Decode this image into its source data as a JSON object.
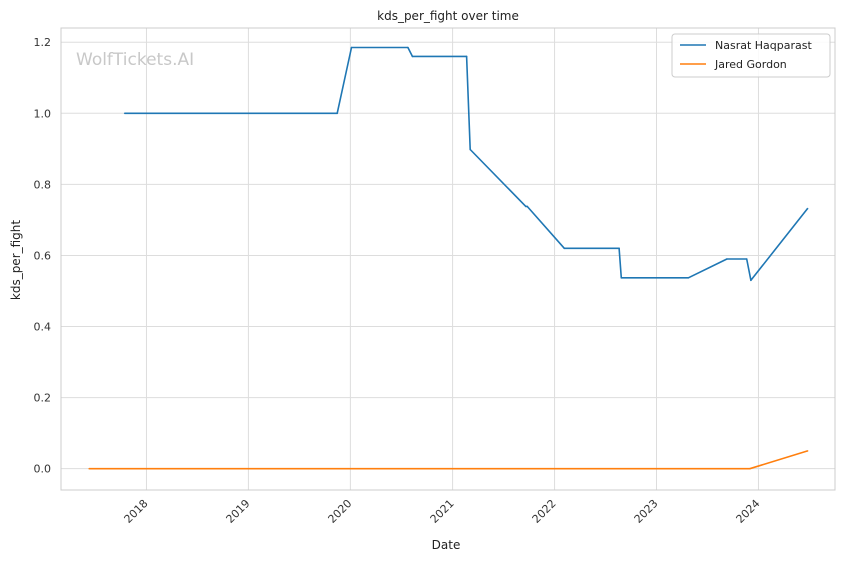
{
  "chart_data": {
    "type": "line",
    "title": "kds_per_fight over time",
    "xlabel": "Date",
    "ylabel": "kds_per_fight",
    "watermark": "WolfTickets.AI",
    "x_tick_labels": [
      "2018",
      "2019",
      "2020",
      "2021",
      "2022",
      "2023",
      "2024"
    ],
    "y_ticks": [
      0.0,
      0.2,
      0.4,
      0.6,
      0.8,
      1.0,
      1.2
    ],
    "y_tick_labels": [
      "0.0",
      "0.2",
      "0.4",
      "0.6",
      "0.8",
      "1.0",
      "1.2"
    ],
    "xlim": [
      "2017-03-01",
      "2024-10-01"
    ],
    "ylim": [
      -0.06,
      1.24
    ],
    "grid": true,
    "legend_position": "top-right",
    "series": [
      {
        "name": "Nasrat Haqparast",
        "color": "#1f77b4",
        "points": [
          [
            "2017-10-15",
            1.0
          ],
          [
            "2019-11-15",
            1.0
          ],
          [
            "2020-01-05",
            1.185
          ],
          [
            "2020-07-25",
            1.185
          ],
          [
            "2020-08-10",
            1.16
          ],
          [
            "2021-02-20",
            1.16
          ],
          [
            "2021-03-05",
            0.898
          ],
          [
            "2021-09-20",
            0.738
          ],
          [
            "2021-09-25",
            0.738
          ],
          [
            "2022-02-05",
            0.62
          ],
          [
            "2022-08-20",
            0.62
          ],
          [
            "2022-08-28",
            0.537
          ],
          [
            "2023-04-25",
            0.537
          ],
          [
            "2023-09-10",
            0.59
          ],
          [
            "2023-11-20",
            0.59
          ],
          [
            "2023-12-05",
            0.53
          ],
          [
            "2024-06-25",
            0.732
          ]
        ]
      },
      {
        "name": "Jared Gordon",
        "color": "#ff7f0e",
        "points": [
          [
            "2017-06-10",
            0.0
          ],
          [
            "2023-12-01",
            0.0
          ],
          [
            "2024-06-25",
            0.05
          ]
        ]
      }
    ]
  }
}
